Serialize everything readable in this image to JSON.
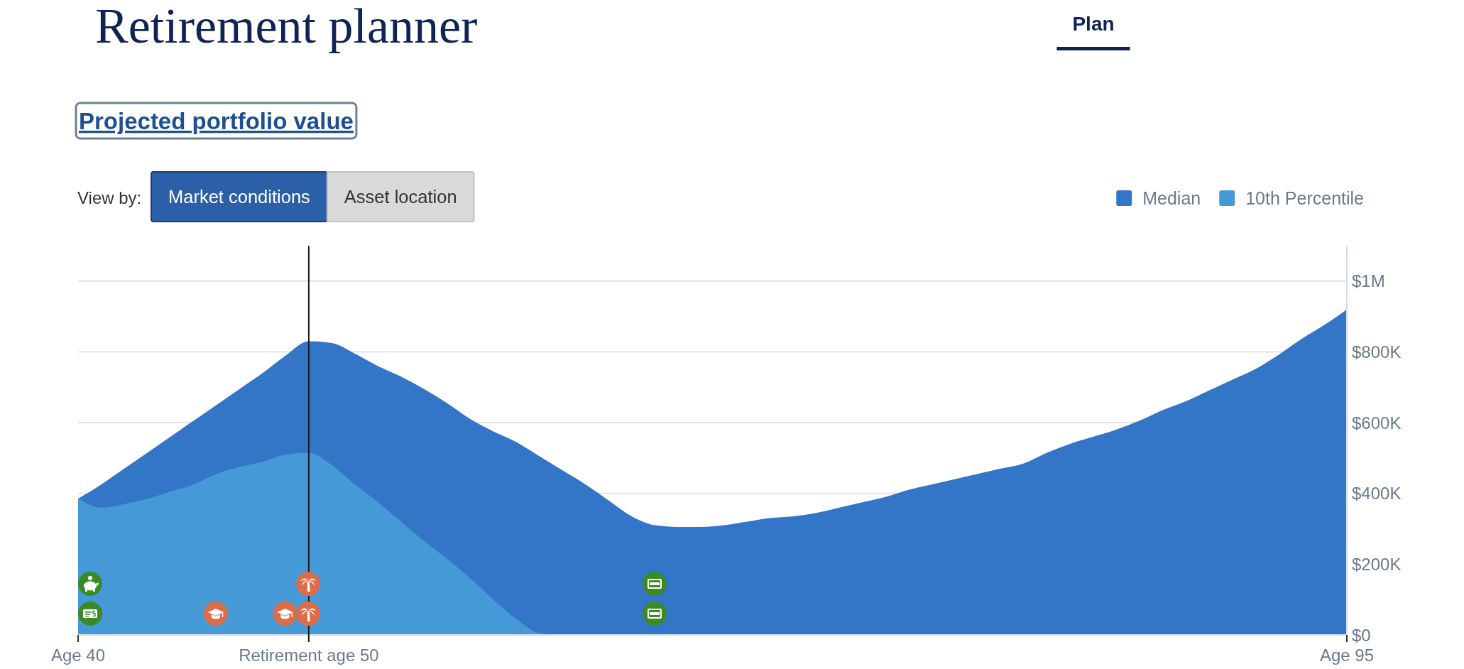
{
  "chart_data": {
    "type": "area",
    "title": "Retirement planner",
    "subtitle": "Projected portfolio value",
    "annotations": [
      "Plan",
      "View by:",
      "Market conditions",
      "Asset location"
    ],
    "categories": [
      "Age 40",
      null,
      null,
      null,
      null,
      null,
      null,
      null,
      null,
      null,
      "Retirement age 50",
      null,
      null,
      null,
      null,
      null,
      null,
      null,
      null,
      null,
      null,
      null,
      null,
      null,
      null,
      null,
      null,
      null,
      null,
      null,
      null,
      null,
      null,
      null,
      null,
      null,
      null,
      null,
      null,
      null,
      null,
      null,
      null,
      null,
      null,
      null,
      null,
      null,
      null,
      null,
      null,
      null,
      null,
      null,
      null,
      "Age 95"
    ],
    "ylim": [
      0,
      1100000
    ],
    "yticks": [
      {
        "value": 0,
        "label": "$0"
      },
      {
        "value": 200000,
        "label": "$200K"
      },
      {
        "value": 400000,
        "label": "$400K"
      },
      {
        "value": 600000,
        "label": "$600K"
      },
      {
        "value": 800000,
        "label": "$800K"
      },
      {
        "value": 1000000,
        "label": "$1M"
      }
    ],
    "grid": "y",
    "legend": "top right",
    "ref_lines": [
      {
        "axis": "x",
        "value": "Retirement age 50",
        "color": "#1a1a1a"
      }
    ],
    "series": [
      {
        "name": "Median",
        "color": "#3375c6",
        "values": [
          385000,
          425000,
          470000,
          515000,
          560000,
          605000,
          650000,
          695000,
          740000,
          790000,
          830000,
          825000,
          795000,
          760000,
          730000,
          695000,
          655000,
          610000,
          575000,
          545000,
          505000,
          465000,
          425000,
          380000,
          335000,
          310000,
          305000,
          305000,
          310000,
          320000,
          330000,
          335000,
          345000,
          360000,
          375000,
          390000,
          410000,
          425000,
          440000,
          455000,
          470000,
          485000,
          515000,
          540000,
          560000,
          580000,
          605000,
          635000,
          660000,
          690000,
          720000,
          750000,
          790000,
          835000,
          875000,
          920000
        ]
      },
      {
        "name": "10th Percentile",
        "color": "#4699d7",
        "values": [
          385000,
          360000,
          370000,
          385000,
          405000,
          425000,
          455000,
          475000,
          490000,
          510000,
          515000,
          480000,
          425000,
          375000,
          320000,
          265000,
          215000,
          160000,
          100000,
          45000,
          5000,
          0,
          0,
          0,
          0,
          0,
          0,
          0,
          0,
          0,
          0,
          0,
          0,
          0,
          0,
          0,
          0,
          0,
          0,
          0,
          0,
          0,
          0,
          0,
          0,
          0,
          0,
          0,
          0,
          0,
          0,
          0,
          0,
          0,
          0,
          0
        ]
      }
    ]
  }
}
